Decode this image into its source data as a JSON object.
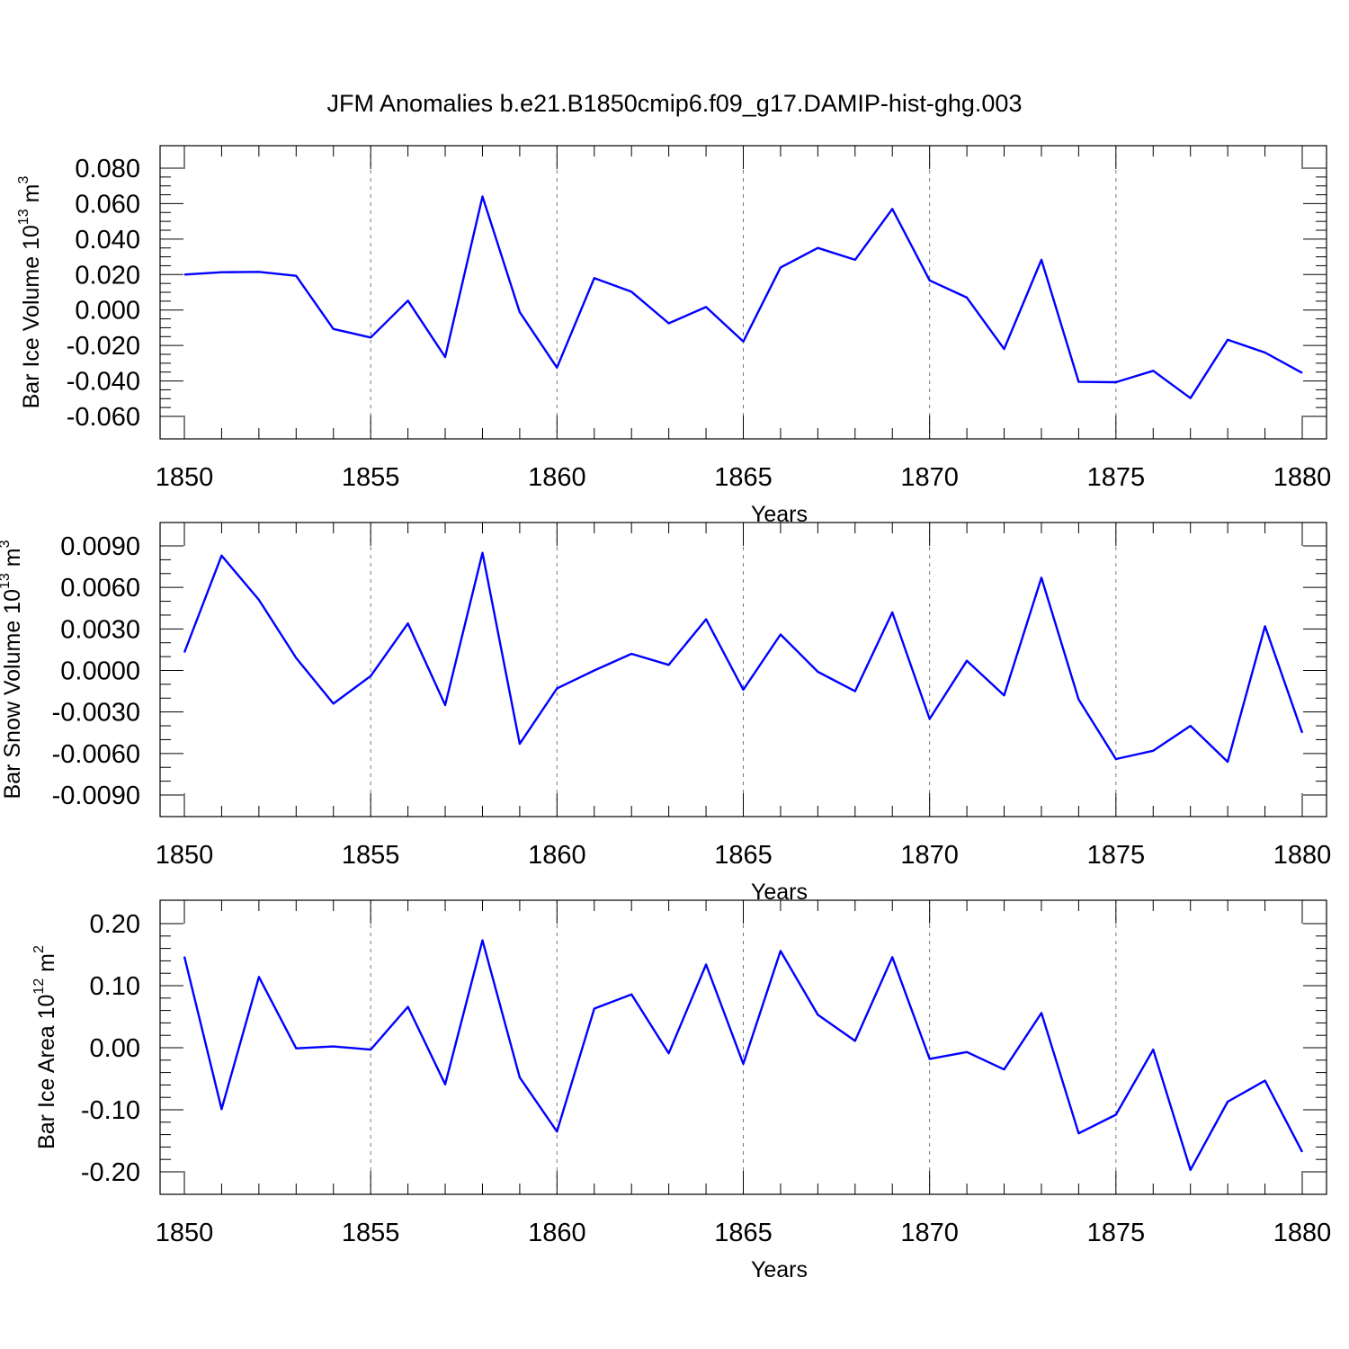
{
  "title": "JFM Anomalies b.e21.B1850cmip6.f09_g17.DAMIP-hist-ghg.003",
  "line_color": "#0000ff",
  "chart_data": [
    {
      "type": "line",
      "xlabel": "Years",
      "ylabel": "Bar Ice Volume 10",
      "ylabel_exp": "13",
      "ylabel_unit": "m",
      "ylabel_unit_exp": "3",
      "xlim": [
        1850,
        1880
      ],
      "ylim": [
        -0.06,
        0.08
      ],
      "xticks": [
        "1850",
        "1855",
        "1860",
        "1865",
        "1870",
        "1875",
        "1880"
      ],
      "yticks": [
        "-0.060",
        "-0.040",
        "-0.020",
        "0.000",
        "0.020",
        "0.040",
        "0.060",
        "0.080"
      ],
      "grid": "vertical dashed at major x ticks",
      "x": [
        1850,
        1851,
        1852,
        1853,
        1854,
        1855,
        1856,
        1857,
        1858,
        1859,
        1860,
        1861,
        1862,
        1863,
        1864,
        1865,
        1866,
        1867,
        1868,
        1869,
        1870,
        1871,
        1872,
        1873,
        1874,
        1875,
        1876,
        1877,
        1878,
        1879,
        1880
      ],
      "values": [
        0.02,
        0.0213,
        0.0215,
        0.0193,
        -0.0107,
        -0.0155,
        0.0053,
        -0.0265,
        0.064,
        -0.0012,
        -0.0325,
        0.018,
        0.0103,
        -0.0075,
        0.0017,
        -0.0178,
        0.024,
        0.035,
        0.0283,
        0.057,
        0.0167,
        0.007,
        -0.022,
        0.0283,
        -0.0405,
        -0.0407,
        -0.0343,
        -0.0497,
        -0.0168,
        -0.024,
        -0.0355
      ]
    },
    {
      "type": "line",
      "xlabel": "Years",
      "ylabel": "Bar Snow Volume 10",
      "ylabel_exp": "13",
      "ylabel_unit": "m",
      "ylabel_unit_exp": "3",
      "xlim": [
        1850,
        1880
      ],
      "ylim": [
        -0.009,
        0.009
      ],
      "xticks": [
        "1850",
        "1855",
        "1860",
        "1865",
        "1870",
        "1875",
        "1880"
      ],
      "yticks": [
        "-0.0090",
        "-0.0060",
        "-0.0030",
        "0.0000",
        "0.0030",
        "0.0060",
        "0.0090"
      ],
      "grid": "vertical dashed at major x ticks",
      "x": [
        1850,
        1851,
        1852,
        1853,
        1854,
        1855,
        1856,
        1857,
        1858,
        1859,
        1860,
        1861,
        1862,
        1863,
        1864,
        1865,
        1866,
        1867,
        1868,
        1869,
        1870,
        1871,
        1872,
        1873,
        1874,
        1875,
        1876,
        1877,
        1878,
        1879,
        1880
      ],
      "values": [
        0.0013,
        0.0083,
        0.0051,
        0.0009,
        -0.0024,
        -0.0004,
        0.0034,
        -0.0025,
        0.0085,
        -0.0053,
        -0.0013,
        -0.0,
        0.0012,
        0.0004,
        0.0037,
        -0.0014,
        0.0026,
        -0.0001,
        -0.0015,
        0.0042,
        -0.0035,
        0.0007,
        -0.0018,
        0.0067,
        -0.0021,
        -0.0064,
        -0.0058,
        -0.004,
        -0.0066,
        0.0032,
        -0.0045
      ]
    },
    {
      "type": "line",
      "xlabel": "Years",
      "ylabel": "Bar Ice Area 10",
      "ylabel_exp": "12",
      "ylabel_unit": "m",
      "ylabel_unit_exp": "2",
      "xlim": [
        1850,
        1880
      ],
      "ylim": [
        -0.2,
        0.2
      ],
      "xticks": [
        "1850",
        "1855",
        "1860",
        "1865",
        "1870",
        "1875",
        "1880"
      ],
      "yticks": [
        "-0.20",
        "-0.10",
        "0.00",
        "0.10",
        "0.20"
      ],
      "grid": "vertical dashed at major x ticks",
      "x": [
        1850,
        1851,
        1852,
        1853,
        1854,
        1855,
        1856,
        1857,
        1858,
        1859,
        1860,
        1861,
        1862,
        1863,
        1864,
        1865,
        1866,
        1867,
        1868,
        1869,
        1870,
        1871,
        1872,
        1873,
        1874,
        1875,
        1876,
        1877,
        1878,
        1879,
        1880
      ],
      "values": [
        0.147,
        -0.099,
        0.114,
        -0.001,
        0.002,
        -0.003,
        0.066,
        -0.059,
        0.173,
        -0.048,
        -0.135,
        0.063,
        0.086,
        -0.009,
        0.134,
        -0.026,
        0.156,
        0.053,
        0.011,
        0.146,
        -0.018,
        -0.007,
        -0.035,
        0.056,
        -0.138,
        -0.108,
        -0.003,
        -0.197,
        -0.087,
        -0.053,
        -0.168
      ]
    }
  ]
}
